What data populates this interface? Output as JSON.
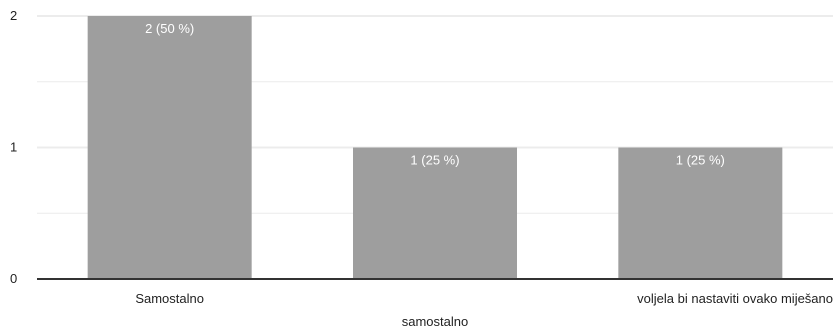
{
  "chart_data": {
    "type": "bar",
    "categories": [
      "Samostalno",
      "samostalno",
      "voljela bi nastaviti ovako miješano"
    ],
    "values": [
      2,
      1,
      1
    ],
    "data_labels": [
      "2 (50 %)",
      "1 (25 %)",
      "1 (25 %)"
    ],
    "title": "",
    "xlabel": "",
    "ylabel": "",
    "ylim": [
      0,
      2
    ],
    "yticks": [
      0,
      1,
      2
    ],
    "grid": true,
    "legend": "none",
    "colors": {
      "bar": "#9e9e9e",
      "gridline": "#ececec",
      "axis": "#333333",
      "bar_label": "#ffffff",
      "tick_label": "#222222"
    }
  }
}
